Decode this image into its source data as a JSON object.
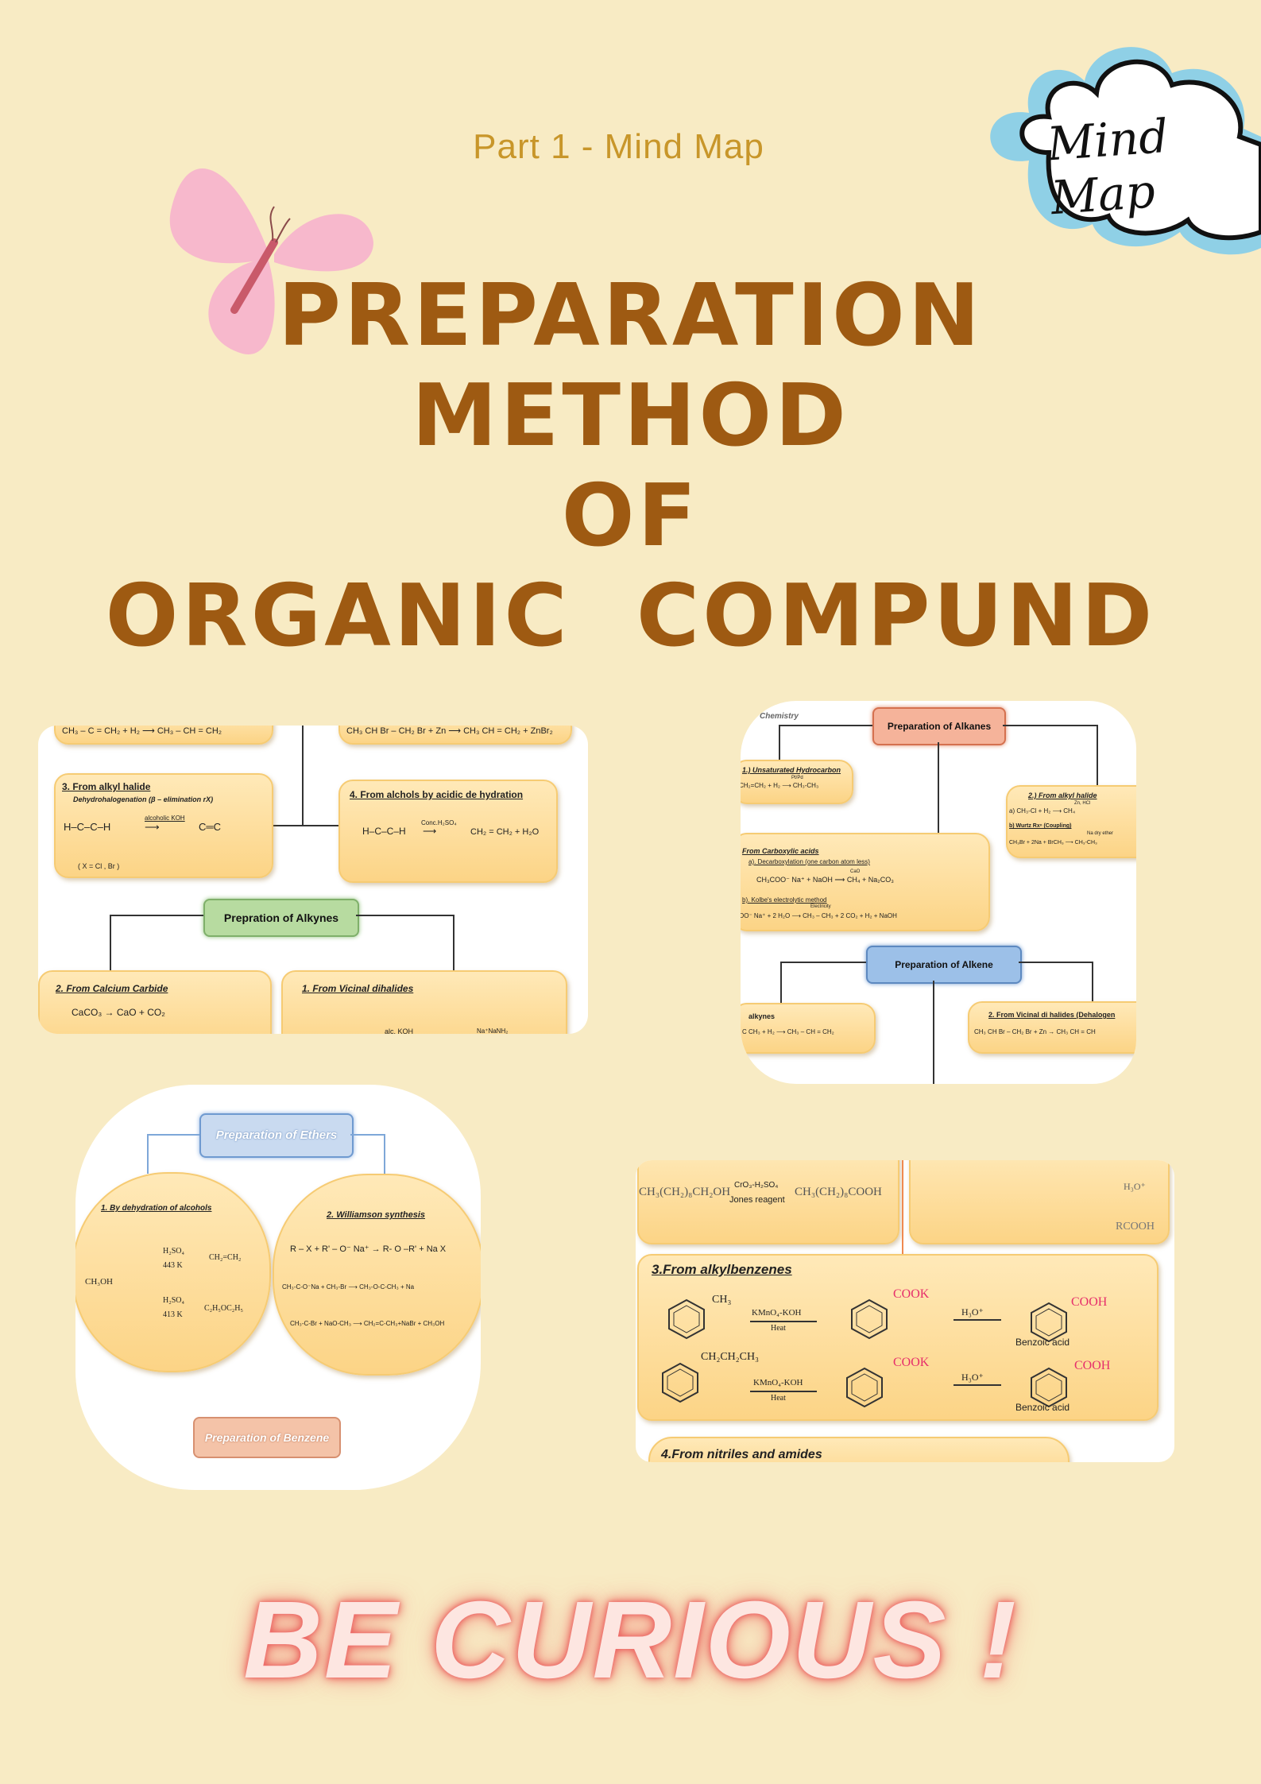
{
  "header": {
    "subtitle": "Part 1 - Mind Map",
    "title_lines": [
      "PREPARATION",
      "METHOD",
      "OF",
      "ORGANIC  COMPUND"
    ],
    "badge": "Mind Map"
  },
  "alkynes": {
    "top_left": "CH₃ – C = CH₂ + H₂ ⟶ CH₃ – CH = CH₂",
    "top_right": "CH₃ CH Br – CH₂ Br  +  Zn ⟶ CH₃ CH = CH₂ + ZnBr₂",
    "box3_title": "3. From alkyl halide",
    "box3_sub": "Dehydrohalogenation (β – elimination rX)",
    "box3_reagent": "alcoholic KOH",
    "box3_note": "( X = Cl , Br )",
    "box4_title": "4. From alchols by acidic de hydration",
    "box4_reagent": "Conc.H₂SO₄",
    "box4_product": "CH₂ = CH₂  +  H₂O",
    "heading": "Prepration of Alkynes",
    "box2_title": "2. From Calcium Carbide",
    "box2_eq": "CaCO₃  → CaO  +  CO₂",
    "box1_title": "1. From Vicinal dihalides",
    "box1_reagent": "alc. KOH",
    "box1_reagent2": "Na⁺NaNH₂"
  },
  "alkanes": {
    "corner": "Chemistry",
    "heading": "Preparation of Alkanes",
    "b1_title": "1.) Unsaturated Hydrocarbon",
    "b1_eq": "CH₂=CH₂  +  H₂ ⟶ CH₃-CH₃",
    "b1_cat": "Pt/Pd",
    "b2_title": "2.) From alkyl halide",
    "b2_a": "a) CH₃-Cl + H₂ ⟶ CH₄",
    "b2_cat": "Zn, HCl",
    "b2_b": "b) Wurtz Rxⁿ (Coupling)",
    "b2_c": "CH₃Br + 2Na + BrCH₃ ⟶ CH₃-CH₃",
    "b2_cat2": "Na dry ether",
    "b3_title": "From Carboxylic acids",
    "b3_a": "a). Decarboxylation (one carbon atom less)",
    "b3_eq1": "CH₃COO⁻ Na⁺  +  NaOH ⟶ CH₄  +  Na₂CO₃",
    "b3_cat1": "CaO",
    "b3_b": "b). Kolbe's electrolytic method",
    "b3_cat2": "Electricity",
    "b3_eq2": "OO⁻ Na⁺ + 2 H₂O ⟶ CH₃ – CH₃  +  2 CO₂  +  H₂  +  NaOH",
    "alkene_heading": "Preparation of Alkene",
    "b4_title": "alkynes",
    "b4_eq": "C CH₃ + H₂ ⟶ CH₃ – CH = CH₂",
    "b5_title": "2. From Vicinal di halides (Dehalogen",
    "b5_eq": "CH₃ CH Br – CH₂ Br  +  Zn → CH₃ CH = CH"
  },
  "ethers": {
    "heading": "Preparation of Ethers",
    "b1_title": "1. By dehydration of alcohols",
    "b1_reactant": "CH₃OH",
    "b1_cond1": "H₂SO₄",
    "b1_temp1": "443 K",
    "b1_prod1": "CH₂=CH₂",
    "b1_cond2": "H₂SO₄",
    "b1_temp2": "413 K",
    "b1_prod2": "C₂H₅OC₂H₅",
    "b2_title": "2. Williamson synthesis",
    "b2_eq": "R – X + R' – O⁻ Na⁺ → R- O –R'  + Na X",
    "b2_eq2": "CH₃-C-O⁻Na + CH₃-Br ⟶ CH₃-O-C-CH₃ + Na",
    "b2_eq3": "CH₃-C-Br + NaO-CH₃ ⟶ CH₂=C-CH₃+NaBr + CH₃OH",
    "benzene_heading": "Preparation of Benzene"
  },
  "acids": {
    "top_eq": "CH₃(CH₂)₈CH₂OH",
    "top_reagent": "CrO₃-H₂SO₄",
    "top_reagent2": "Jones reagent",
    "top_prod": "CH₃(CH₂)₈COOH",
    "top_right_cond": "H₃O⁺",
    "top_right_prod": "RCOOH",
    "box3_title": "3.From alkylbenzenes",
    "row1_sub": "CH₃",
    "row1_reagent": "KMnO₄-KOH",
    "row1_heat": "Heat",
    "row1_mid": "COOK",
    "row1_cond": "H₃O⁺",
    "row1_prod": "COOH",
    "row1_name": "Benzoic acid",
    "row2_sub": "CH₂CH₂CH₃",
    "row2_reagent": "KMnO₄-KOH",
    "row2_heat": "Heat",
    "row2_mid": "COOK",
    "row2_cond": "H₃O⁺",
    "row2_prod": "COOH",
    "row2_name": "Benzoic acid",
    "box4_title": "4.From nitriles and amides"
  },
  "footer": {
    "slogan": "BE CURIOUS !"
  }
}
